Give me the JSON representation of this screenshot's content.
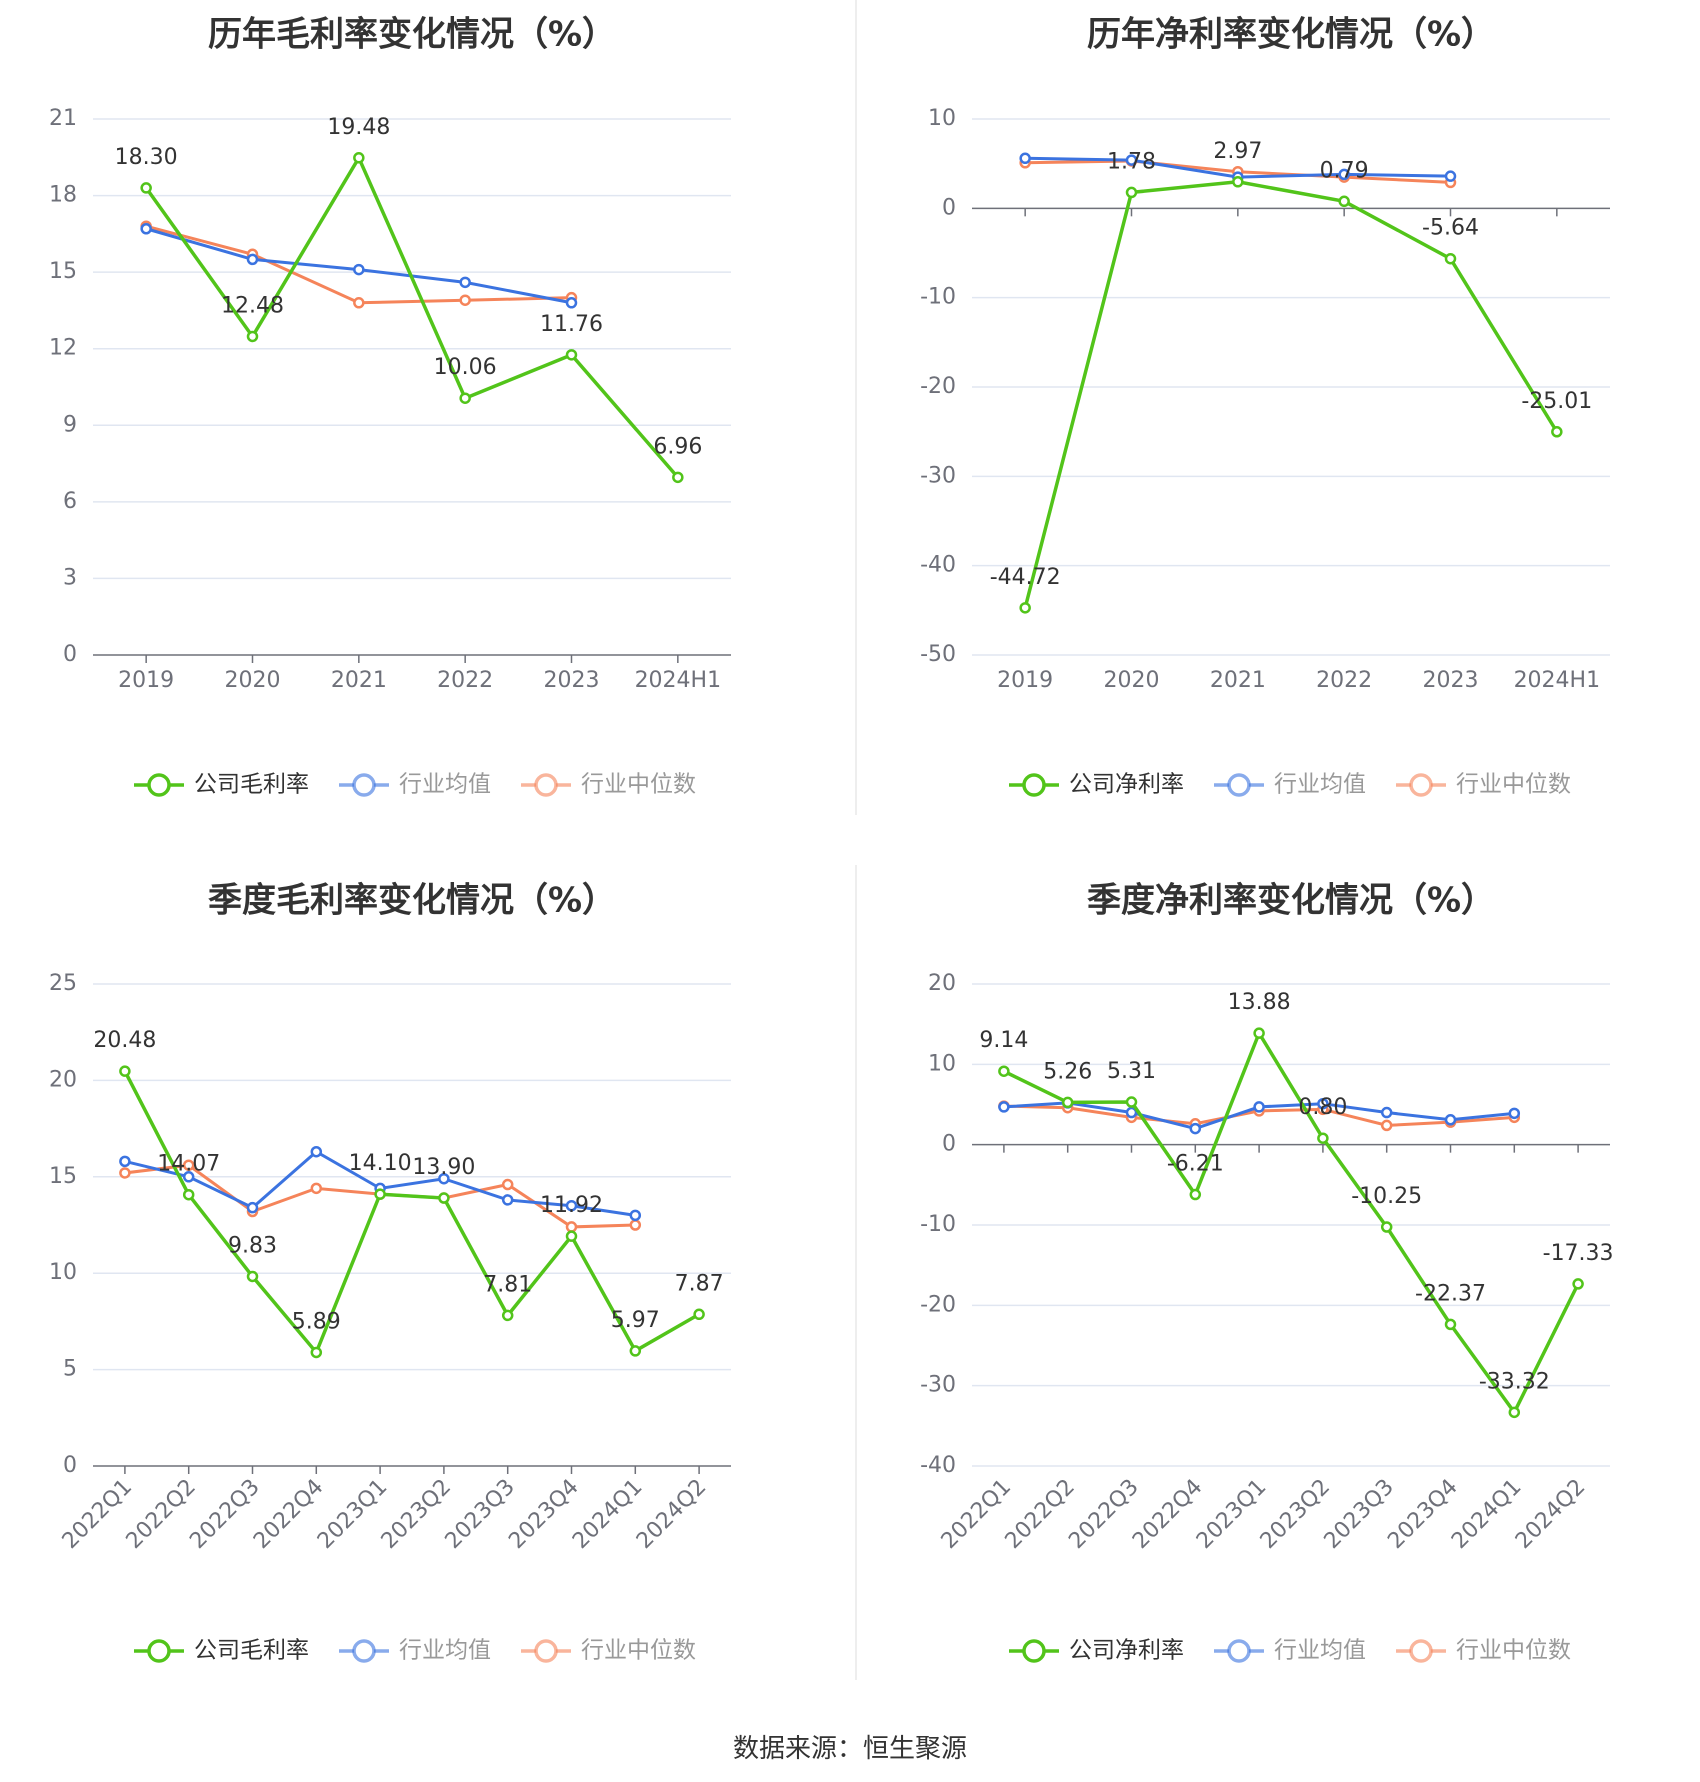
{
  "legend_colors": {
    "company": "#52c41a",
    "avg": "#3b73e0",
    "median": "#f5845a"
  },
  "source": "数据来源：恒生聚源",
  "chart_data": [
    {
      "type": "line",
      "title": "历年毛利率变化情况（%）",
      "categories": [
        "2019",
        "2020",
        "2021",
        "2022",
        "2023",
        "2024H1"
      ],
      "ylim": [
        0,
        21
      ],
      "yticks": [
        0,
        3,
        6,
        9,
        12,
        15,
        18,
        21
      ],
      "legend": [
        "公司毛利率",
        "行业均值",
        "行业中位数"
      ],
      "series": [
        {
          "name": "公司毛利率",
          "values": [
            18.3,
            12.48,
            19.48,
            10.06,
            11.76,
            6.96
          ],
          "labels": [
            "18.30",
            "12.48",
            "19.48",
            "10.06",
            "11.76",
            "6.96"
          ]
        },
        {
          "name": "行业均值",
          "values": [
            16.7,
            15.5,
            15.1,
            14.6,
            13.8,
            null
          ]
        },
        {
          "name": "行业中位数",
          "values": [
            16.8,
            15.7,
            13.8,
            13.9,
            14.0,
            null
          ]
        }
      ]
    },
    {
      "type": "line",
      "title": "历年净利率变化情况（%）",
      "categories": [
        "2019",
        "2020",
        "2021",
        "2022",
        "2023",
        "2024H1"
      ],
      "ylim": [
        -50,
        10
      ],
      "yticks": [
        -50,
        -40,
        -30,
        -20,
        -10,
        0,
        10
      ],
      "legend": [
        "公司净利率",
        "行业均值",
        "行业中位数"
      ],
      "series": [
        {
          "name": "公司净利率",
          "values": [
            -44.72,
            1.78,
            2.97,
            0.79,
            -5.64,
            -25.01
          ],
          "labels": [
            "-44.72",
            "1.78",
            "2.97",
            "0.79",
            "-5.64",
            "-25.01"
          ]
        },
        {
          "name": "行业均值",
          "values": [
            5.6,
            5.4,
            3.5,
            3.8,
            3.6,
            null
          ]
        },
        {
          "name": "行业中位数",
          "values": [
            5.1,
            5.3,
            4.1,
            3.5,
            2.9,
            null
          ]
        }
      ]
    },
    {
      "type": "line",
      "title": "季度毛利率变化情况（%）",
      "categories": [
        "2022Q1",
        "2022Q2",
        "2022Q3",
        "2022Q4",
        "2023Q1",
        "2023Q2",
        "2023Q3",
        "2023Q4",
        "2024Q1",
        "2024Q2"
      ],
      "ylim": [
        0,
        25
      ],
      "yticks": [
        0,
        5,
        10,
        15,
        20,
        25
      ],
      "legend": [
        "公司毛利率",
        "行业均值",
        "行业中位数"
      ],
      "series": [
        {
          "name": "公司毛利率",
          "values": [
            20.48,
            14.07,
            9.83,
            5.89,
            14.1,
            13.9,
            7.81,
            11.92,
            5.97,
            7.87
          ],
          "labels": [
            "20.48",
            "14.07",
            "9.83",
            "5.89",
            "14.10",
            "13.90",
            "7.81",
            "11.92",
            "5.97",
            "7.87"
          ]
        },
        {
          "name": "行业均值",
          "values": [
            15.8,
            15.0,
            13.4,
            16.3,
            14.4,
            14.9,
            13.8,
            13.5,
            13.0,
            null
          ]
        },
        {
          "name": "行业中位数",
          "values": [
            15.2,
            15.6,
            13.2,
            14.4,
            14.1,
            13.9,
            14.6,
            12.4,
            12.5,
            null
          ]
        }
      ]
    },
    {
      "type": "line",
      "title": "季度净利率变化情况（%）",
      "categories": [
        "2022Q1",
        "2022Q2",
        "2022Q3",
        "2022Q4",
        "2023Q1",
        "2023Q2",
        "2023Q3",
        "2023Q4",
        "2024Q1",
        "2024Q2"
      ],
      "ylim": [
        -40,
        20
      ],
      "yticks": [
        -40,
        -30,
        -20,
        -10,
        0,
        10,
        20
      ],
      "legend": [
        "公司净利率",
        "行业均值",
        "行业中位数"
      ],
      "series": [
        {
          "name": "公司净利率",
          "values": [
            9.14,
            5.26,
            5.31,
            -6.21,
            13.88,
            0.8,
            -10.25,
            -22.37,
            -33.32,
            -17.33
          ],
          "labels": [
            "9.14",
            "5.26",
            "5.31",
            "-6.21",
            "13.88",
            "0.80",
            "-10.25",
            "-22.37",
            "-33.32",
            "-17.33"
          ]
        },
        {
          "name": "行业均值",
          "values": [
            4.7,
            5.2,
            4.0,
            2.0,
            4.7,
            5.1,
            4.0,
            3.1,
            3.9,
            null
          ]
        },
        {
          "name": "行业中位数",
          "values": [
            4.8,
            4.6,
            3.4,
            2.6,
            4.2,
            4.4,
            2.4,
            2.8,
            3.4,
            null
          ]
        }
      ]
    }
  ]
}
